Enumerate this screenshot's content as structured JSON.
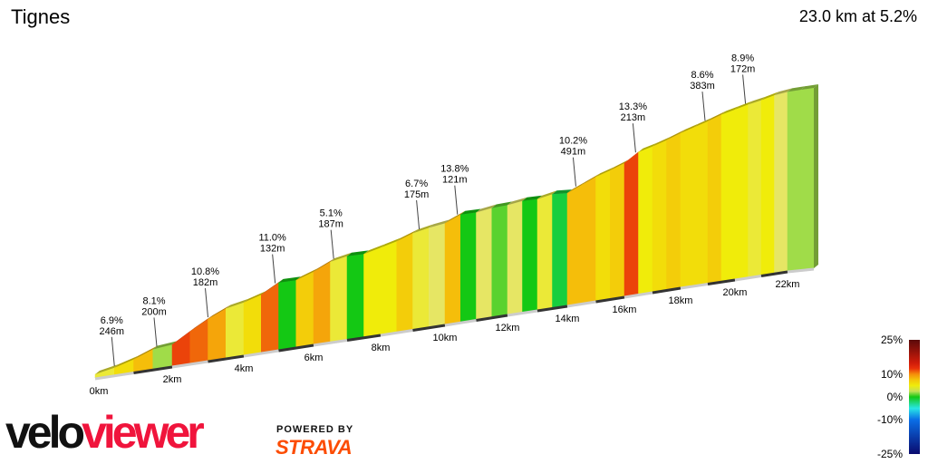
{
  "header": {
    "title": "Tignes",
    "summary": "23.0 km at 5.2%"
  },
  "chart_data": {
    "type": "area",
    "title": "Tignes",
    "distance_km": 23.0,
    "average_gradient_pct": 5.2,
    "segment_length_km": 0.5,
    "gradients_pct": [
      4,
      6,
      8,
      2,
      12,
      11,
      9,
      4,
      6,
      11,
      0,
      7,
      9,
      4,
      0,
      5,
      5,
      7,
      4,
      3,
      8,
      0,
      3,
      1,
      3,
      0,
      4,
      -1,
      8,
      8,
      6,
      7,
      12,
      5,
      6,
      7,
      6,
      6,
      7,
      5,
      5,
      4,
      5,
      3,
      2,
      2
    ],
    "x_tick_labels": [
      "0km",
      "2km",
      "4km",
      "6km",
      "8km",
      "10km",
      "12km",
      "14km",
      "16km",
      "18km",
      "20km",
      "22km"
    ],
    "x_ticks_km": [
      0,
      2,
      4,
      6,
      8,
      10,
      12,
      14,
      16,
      18,
      20,
      22
    ],
    "climb_annotations": [
      {
        "km": 0.5,
        "gradient": "6.9%",
        "length": "246m"
      },
      {
        "km": 1.6,
        "gradient": "8.1%",
        "length": "200m"
      },
      {
        "km": 3.0,
        "gradient": "10.8%",
        "length": "182m"
      },
      {
        "km": 4.9,
        "gradient": "11.0%",
        "length": "132m"
      },
      {
        "km": 6.6,
        "gradient": "5.1%",
        "length": "187m"
      },
      {
        "km": 9.2,
        "gradient": "6.7%",
        "length": "175m"
      },
      {
        "km": 10.4,
        "gradient": "13.8%",
        "length": "121m"
      },
      {
        "km": 14.3,
        "gradient": "10.2%",
        "length": "491m"
      },
      {
        "km": 16.4,
        "gradient": "13.3%",
        "length": "213m"
      },
      {
        "km": 18.9,
        "gradient": "8.6%",
        "length": "383m"
      },
      {
        "km": 20.4,
        "gradient": "8.9%",
        "length": "172m"
      }
    ],
    "legend": {
      "ticks": [
        "25%",
        "10%",
        "0%",
        "-10%",
        "-25%"
      ],
      "values": [
        25,
        10,
        0,
        -10,
        -25
      ]
    },
    "colors": {
      "-25": "#0a0a6e",
      "-10": "#0a6ee6",
      "-5": "#28e6e6",
      "0": "#14c814",
      "3": "#e6e664",
      "5": "#f0ec0a",
      "8": "#f5be0a",
      "10": "#f58c0a",
      "13": "#e61e0a",
      "25": "#5a0a0a"
    }
  },
  "branding": {
    "logo_part1": "velo",
    "logo_part2": "viewer",
    "powered_by": "POWERED BY",
    "strava": "STRAVA"
  }
}
